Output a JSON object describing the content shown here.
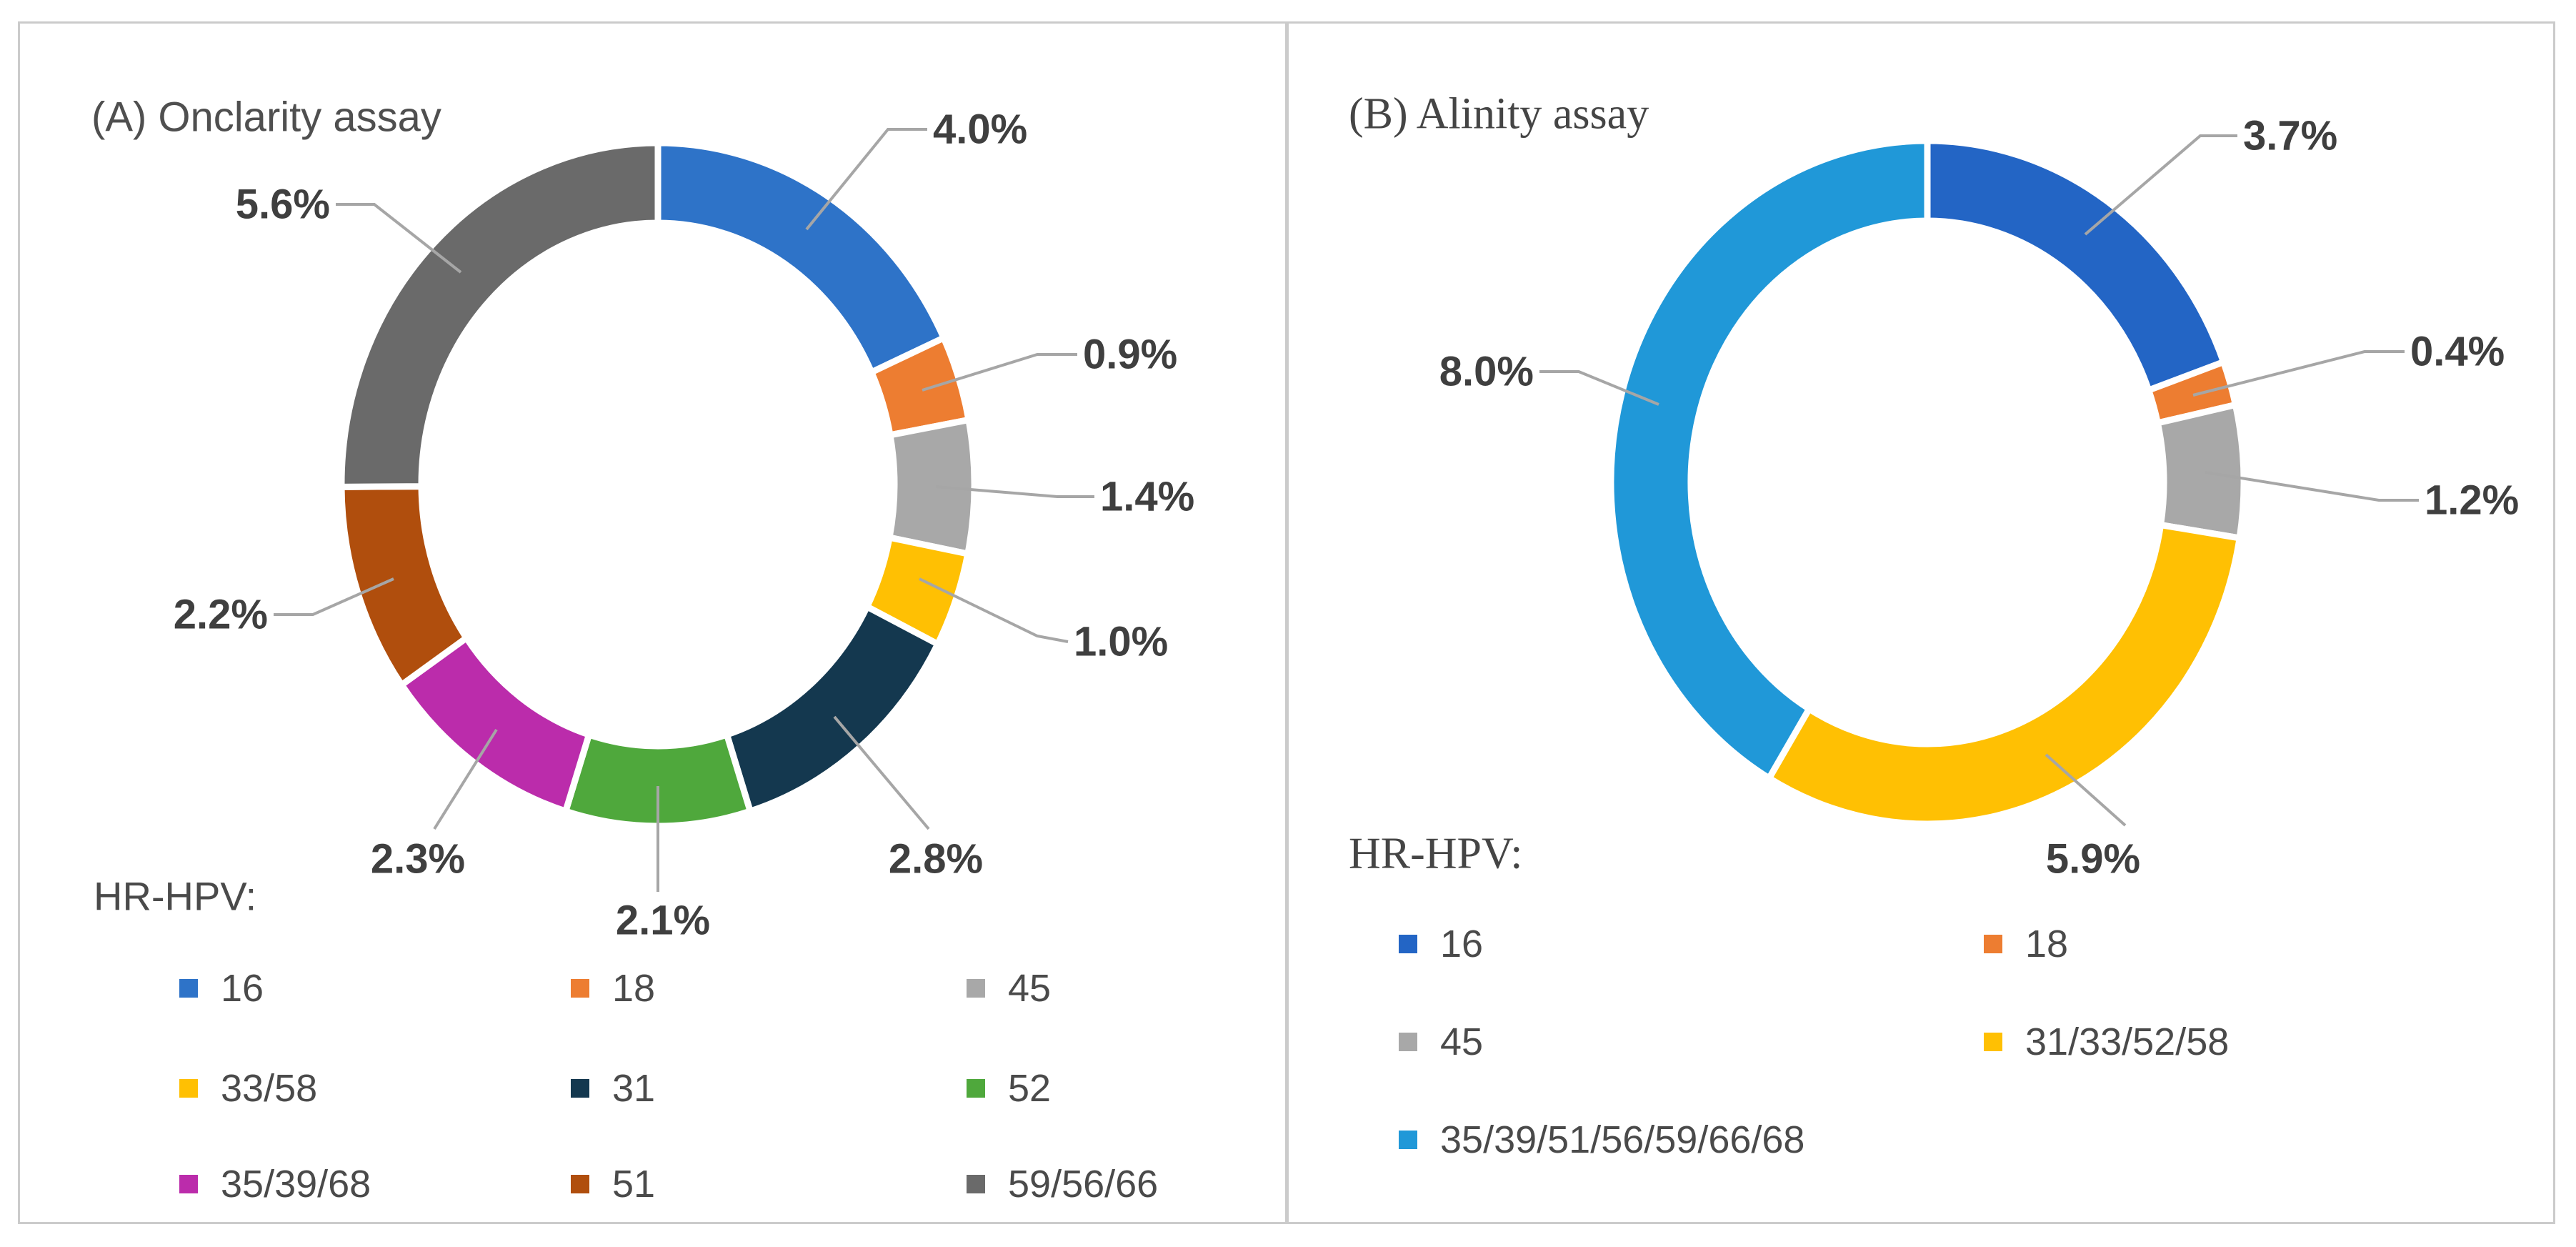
{
  "figure": {
    "background": "#ffffff",
    "border_color": "#cbcbcb",
    "text_color": "#4a4a4a",
    "label_color": "#3f3f3f",
    "leader_line_color": "#a6a6a6"
  },
  "chart_data": [
    {
      "type": "pie",
      "subtype": "donut",
      "panel": "A",
      "title": "(A) Onclarity assay",
      "legend_title": "HR-HPV:",
      "legend_position": "bottom",
      "units": "% prevalence per HR-HPV genotype group",
      "categories": [
        "16",
        "18",
        "45",
        "33/58",
        "31",
        "52",
        "35/39/68",
        "51",
        "59/56/66"
      ],
      "values": [
        4.0,
        0.9,
        1.4,
        1.0,
        2.8,
        2.1,
        2.3,
        2.2,
        5.6
      ],
      "labels": [
        "4.0%",
        "0.9%",
        "1.4%",
        "1.0%",
        "2.8%",
        "2.1%",
        "2.3%",
        "2.2%",
        "5.6%"
      ],
      "colors": [
        "#2E73C8",
        "#ED7D31",
        "#A8A8A8",
        "#FFC003",
        "#14384F",
        "#4FA83C",
        "#BB2CAB",
        "#B04E0D",
        "#6A6A6A"
      ]
    },
    {
      "type": "pie",
      "subtype": "donut",
      "panel": "B",
      "title": "(B) Alinity assay",
      "legend_title": "HR-HPV:",
      "legend_position": "bottom",
      "units": "% prevalence per HR-HPV genotype group",
      "categories": [
        "16",
        "18",
        "45",
        "31/33/52/58",
        "35/39/51/56/59/66/68"
      ],
      "values": [
        3.7,
        0.4,
        1.2,
        5.9,
        8.0
      ],
      "labels": [
        "3.7%",
        "0.4%",
        "1.2%",
        "5.9%",
        "8.0%"
      ],
      "colors": [
        "#2365C5",
        "#ED7D31",
        "#A8A8A8",
        "#FFC003",
        "#2098D8"
      ]
    }
  ]
}
